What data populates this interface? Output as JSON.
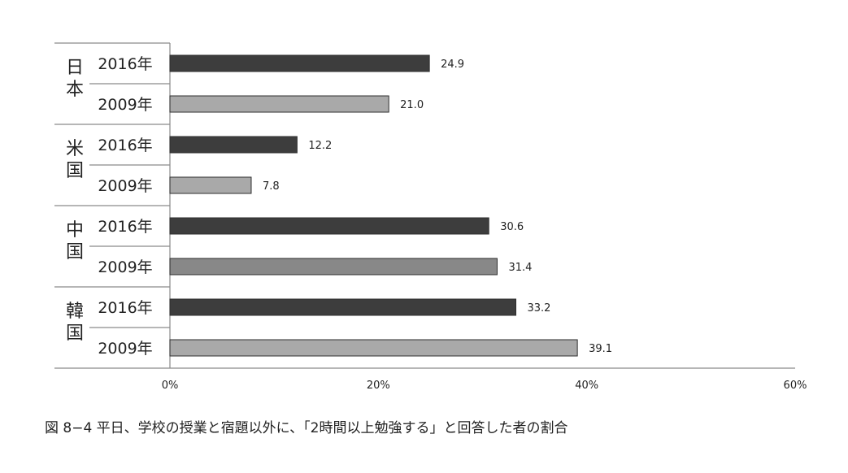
{
  "chart_data": {
    "type": "bar",
    "orientation": "horizontal",
    "groups": [
      {
        "name": "日本",
        "rows": [
          {
            "label": "2016年",
            "value": 24.9,
            "value_label": "24.9"
          },
          {
            "label": "2009年",
            "value": 21.0,
            "value_label": "21.0"
          }
        ]
      },
      {
        "name": "米国",
        "rows": [
          {
            "label": "2016年",
            "value": 12.2,
            "value_label": "12.2"
          },
          {
            "label": "2009年",
            "value": 7.8,
            "value_label": "7.8"
          }
        ]
      },
      {
        "name": "中国",
        "rows": [
          {
            "label": "2016年",
            "value": 30.6,
            "value_label": "30.6"
          },
          {
            "label": "2009年",
            "value": 31.4,
            "value_label": "31.4"
          }
        ]
      },
      {
        "name": "韓国",
        "rows": [
          {
            "label": "2016年",
            "value": 33.2,
            "value_label": "33.2"
          },
          {
            "label": "2009年",
            "value": 39.1,
            "value_label": "39.1"
          }
        ]
      }
    ],
    "xlim": [
      0,
      60
    ],
    "xticks": [
      0,
      20,
      40,
      60
    ],
    "xtick_labels": [
      "0%",
      "20%",
      "40%",
      "60%"
    ],
    "grid": false,
    "legend": "none",
    "colors": {
      "2016年": "#3d3d3d",
      "2009年_japan_usa": "#a9a9a9",
      "2009年_china": "#888888",
      "2009年_korea": "#a9a9a9"
    }
  },
  "caption": "図 8−4  平日、学校の授業と宿題以外に、「2時間以上勉強する」と回答した者の割合"
}
